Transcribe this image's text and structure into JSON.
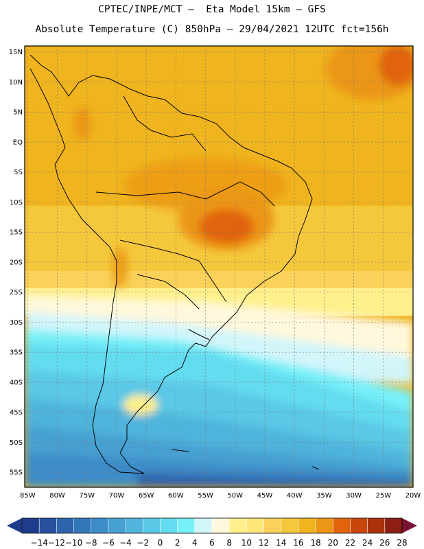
{
  "header": {
    "line1": "CPTEC/INPE/MCT –  Eta Model 15km – GFS",
    "line2": "Absolute Temperature (C) 850hPa – 29/04/2021 12UTC fct=156h"
  },
  "map": {
    "lat_labels": [
      "15N",
      "10N",
      "5N",
      "EQ",
      "5S",
      "10S",
      "15S",
      "20S",
      "25S",
      "30S",
      "35S",
      "40S",
      "45S",
      "50S",
      "55S"
    ],
    "lon_labels": [
      "85W",
      "80W",
      "75W",
      "70W",
      "65W",
      "60W",
      "55W",
      "50W",
      "45W",
      "40W",
      "35W",
      "30W",
      "25W",
      "20W"
    ],
    "lon_range": [
      -85.5,
      -20
    ],
    "lat_range": [
      -57.5,
      16
    ]
  },
  "colorbar": {
    "labels": [
      "−14",
      "−12",
      "−10",
      "−8",
      "−6",
      "−4",
      "−2",
      "0",
      "2",
      "4",
      "6",
      "8",
      "10",
      "12",
      "14",
      "16",
      "18",
      "20",
      "22",
      "24",
      "26",
      "28"
    ],
    "colors": [
      "#1e3c8c",
      "#28509c",
      "#2d64ac",
      "#3278b8",
      "#3c8cc8",
      "#46a0d2",
      "#50b4dc",
      "#5ac8e6",
      "#64dcf0",
      "#78f0f8",
      "#d2f5fa",
      "#fff8dc",
      "#fff08c",
      "#ffe678",
      "#fad25a",
      "#f5c83c",
      "#f0b41e",
      "#eb9614",
      "#e1640a",
      "#c8460a",
      "#aa320a",
      "#8c1e14"
    ],
    "under_color": "#1e3c8c",
    "over_color": "#781432"
  }
}
